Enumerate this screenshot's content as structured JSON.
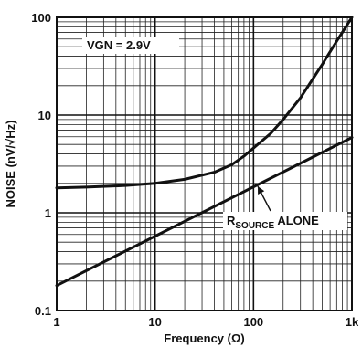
{
  "chart_data": {
    "type": "line",
    "xlabel": "Frequency (Ω)",
    "ylabel": "NOISE (nV/√Hz)",
    "x_scale": "log",
    "y_scale": "log",
    "xlim": [
      1,
      1000
    ],
    "ylim": [
      0.1,
      100
    ],
    "x_ticks": [
      "1",
      "10",
      "100",
      "1k"
    ],
    "y_ticks": [
      "0.1",
      "1",
      "10",
      "100"
    ],
    "grid": true,
    "legend": "none",
    "series": [
      {
        "x": [
          1,
          2,
          5,
          10,
          20,
          40,
          60,
          80,
          100,
          150,
          200,
          300,
          500,
          700,
          1000
        ],
        "y": [
          1.8,
          1.83,
          1.9,
          2.0,
          2.2,
          2.6,
          3.1,
          3.8,
          4.6,
          6.5,
          9.0,
          15.0,
          33.0,
          57.0,
          100.0
        ]
      },
      {
        "x": [
          1,
          1000
        ],
        "y": [
          0.18,
          5.9
        ]
      }
    ],
    "annotations": [
      {
        "label": "VGN = 2.9V"
      },
      {
        "main": "R",
        "sub": "SOURCE",
        "tail": " ALONE"
      }
    ]
  }
}
